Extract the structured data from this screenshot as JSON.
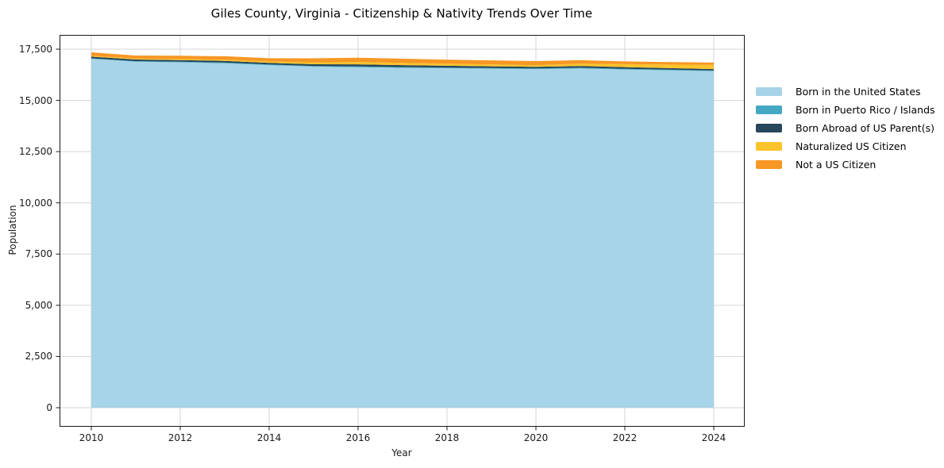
{
  "title": "Giles County, Virginia - Citizenship & Nativity Trends Over Time",
  "chart_data": {
    "type": "area",
    "stacked": true,
    "title": "Giles County, Virginia - Citizenship & Nativity Trends Over Time",
    "xlabel": "Year",
    "ylabel": "Population",
    "x": [
      2010,
      2011,
      2012,
      2013,
      2014,
      2015,
      2016,
      2017,
      2018,
      2019,
      2020,
      2021,
      2022,
      2023,
      2024
    ],
    "series": [
      {
        "name": "Born in the United States",
        "color": "#a7d4e8",
        "values": [
          17030,
          16890,
          16860,
          16810,
          16720,
          16650,
          16620,
          16590,
          16570,
          16550,
          16530,
          16560,
          16510,
          16470,
          16430
        ]
      },
      {
        "name": "Born in Puerto Rico / Islands",
        "color": "#45a8c2",
        "values": [
          25,
          25,
          30,
          35,
          35,
          30,
          40,
          35,
          30,
          30,
          30,
          35,
          35,
          30,
          30
        ]
      },
      {
        "name": "Born Abroad of US Parent(s)",
        "color": "#26475c",
        "values": [
          80,
          80,
          80,
          85,
          80,
          85,
          100,
          95,
          90,
          85,
          80,
          85,
          80,
          75,
          70
        ]
      },
      {
        "name": "Naturalized US Citizen",
        "color": "#fcc32b",
        "values": [
          45,
          45,
          50,
          55,
          65,
          90,
          115,
          110,
          100,
          90,
          75,
          115,
          145,
          175,
          205
        ]
      },
      {
        "name": "Not a US Citizen",
        "color": "#f79724",
        "values": [
          165,
          150,
          160,
          170,
          160,
          200,
          210,
          205,
          200,
          200,
          205,
          165,
          135,
          120,
          110
        ]
      }
    ],
    "xticks": [
      2010,
      2012,
      2014,
      2016,
      2018,
      2020,
      2022,
      2024
    ],
    "xtick_labels": [
      "2010",
      "2012",
      "2014",
      "2016",
      "2018",
      "2020",
      "2022",
      "2024"
    ],
    "yticks": [
      0,
      2500,
      5000,
      7500,
      10000,
      12500,
      15000,
      17500
    ],
    "ytick_labels": [
      "0",
      "2,500",
      "5,000",
      "7,500",
      "10,000",
      "12,500",
      "15,000",
      "17,500"
    ],
    "xlim": [
      2009.29,
      2024.68
    ],
    "ylim": [
      -890,
      18200
    ],
    "grid": true,
    "legend_position": "right-outside"
  }
}
